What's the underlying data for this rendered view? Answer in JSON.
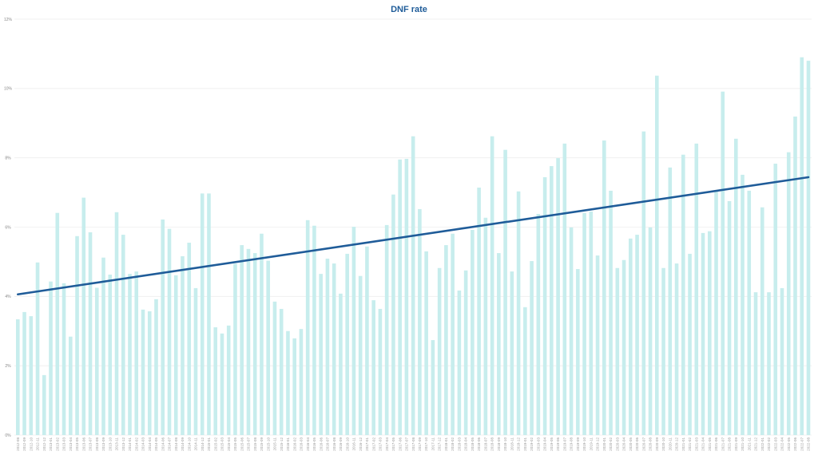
{
  "chart_data": {
    "type": "bar",
    "title": "DNF rate",
    "xlabel": "",
    "ylabel": "",
    "ylim": [
      0,
      12
    ],
    "y_ticks": [
      "0%",
      "2%",
      "4%",
      "6%",
      "8%",
      "10%",
      "12%"
    ],
    "y_tick_values": [
      0,
      2,
      4,
      6,
      8,
      10,
      12
    ],
    "grid": true,
    "legend": "none",
    "bar_color": "#c7eded",
    "trendline_color": "#1f5c99",
    "trendline": {
      "type": "linear",
      "start": 4.06,
      "end": 7.44
    },
    "categories": [
      "2012-08",
      "2012-09",
      "2012-10",
      "2012-11",
      "2012-12",
      "2013-01",
      "2013-02",
      "2013-03",
      "2013-04",
      "2013-05",
      "2013-06",
      "2013-07",
      "2013-08",
      "2013-09",
      "2013-10",
      "2013-11",
      "2013-12",
      "2014-01",
      "2014-02",
      "2014-03",
      "2014-04",
      "2014-05",
      "2014-06",
      "2014-07",
      "2014-08",
      "2014-09",
      "2014-10",
      "2014-11",
      "2014-12",
      "2015-01",
      "2015-02",
      "2015-03",
      "2015-04",
      "2015-05",
      "2015-06",
      "2015-07",
      "2015-08",
      "2015-09",
      "2015-10",
      "2015-11",
      "2015-12",
      "2016-01",
      "2016-02",
      "2016-03",
      "2016-04",
      "2016-05",
      "2016-06",
      "2016-07",
      "2016-08",
      "2016-09",
      "2016-10",
      "2016-11",
      "2016-12",
      "2017-01",
      "2017-02",
      "2017-03",
      "2017-04",
      "2017-05",
      "2017-06",
      "2017-07",
      "2017-08",
      "2017-09",
      "2017-10",
      "2017-11",
      "2017-12",
      "2018-01",
      "2018-02",
      "2018-03",
      "2018-04",
      "2018-05",
      "2018-06",
      "2018-07",
      "2018-08",
      "2018-09",
      "2018-10",
      "2018-11",
      "2018-12",
      "2019-01",
      "2019-02",
      "2019-03",
      "2019-04",
      "2019-05",
      "2019-06",
      "2019-07",
      "2019-08",
      "2019-09",
      "2019-10",
      "2019-11",
      "2019-12",
      "2020-01",
      "2020-02",
      "2020-03",
      "2020-04",
      "2020-05",
      "2020-06",
      "2020-07",
      "2020-08",
      "2020-09",
      "2020-10",
      "2020-11",
      "2020-12",
      "2021-01",
      "2021-02",
      "2021-03",
      "2021-04",
      "2021-05",
      "2021-06",
      "2021-07",
      "2021-08",
      "2021-09",
      "2021-10",
      "2021-11",
      "2021-12",
      "2022-01",
      "2022-02",
      "2022-03",
      "2022-04",
      "2022-05",
      "2022-06",
      "2022-07",
      "2022-08"
    ],
    "values": [
      3.34,
      3.55,
      3.43,
      4.98,
      1.73,
      4.43,
      6.41,
      4.38,
      2.84,
      5.74,
      6.85,
      5.85,
      4.25,
      5.12,
      4.63,
      6.43,
      5.78,
      4.65,
      4.72,
      3.62,
      3.57,
      3.92,
      6.22,
      5.95,
      4.61,
      5.16,
      5.55,
      4.24,
      6.97,
      6.97,
      3.11,
      2.93,
      3.16,
      4.94,
      5.48,
      5.37,
      5.25,
      5.81,
      5.03,
      3.85,
      3.64,
      3.0,
      2.79,
      3.06,
      6.2,
      6.04,
      4.65,
      5.09,
      4.95,
      4.08,
      5.23,
      6.01,
      4.59,
      5.44,
      3.89,
      3.64,
      6.06,
      6.94,
      7.95,
      7.97,
      8.62,
      6.52,
      5.3,
      2.74,
      4.82,
      5.48,
      5.81,
      4.17,
      4.75,
      5.92,
      7.14,
      6.27,
      8.62,
      5.25,
      8.23,
      4.72,
      7.03,
      3.69,
      5.02,
      6.38,
      7.44,
      7.76,
      7.99,
      8.41,
      5.99,
      4.79,
      6.41,
      6.45,
      5.18,
      8.5,
      7.05,
      4.82,
      5.05,
      5.67,
      5.78,
      8.76,
      5.99,
      10.37,
      4.82,
      7.72,
      4.95,
      8.09,
      5.23,
      8.41,
      5.83,
      5.88,
      7.05,
      9.91,
      6.75,
      8.55,
      7.51,
      7.05,
      4.12,
      6.57,
      4.12,
      7.83,
      4.24,
      8.16,
      9.19,
      10.9,
      10.8
    ]
  }
}
